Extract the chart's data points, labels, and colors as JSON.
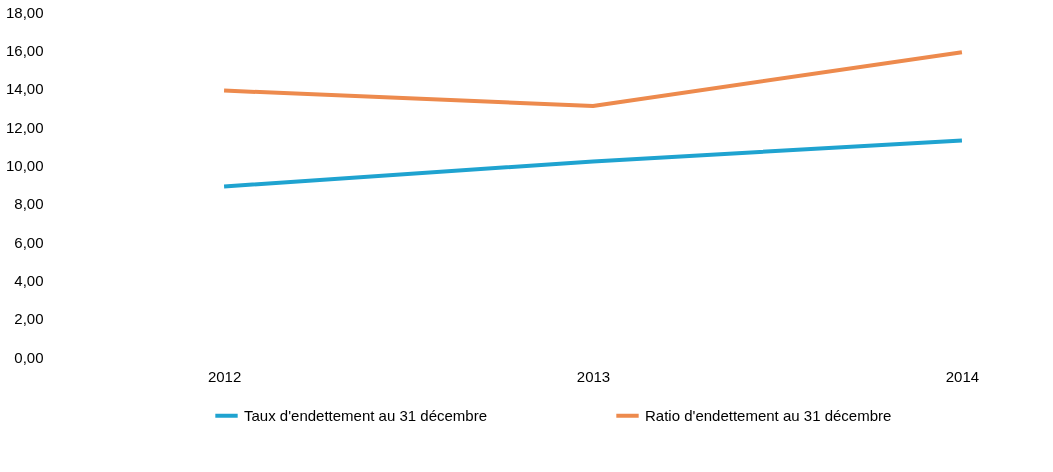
{
  "chart_data": {
    "type": "line",
    "categories": [
      "2012",
      "2013",
      "2014"
    ],
    "series": [
      {
        "name": "Taux d'endettement au 31 décembre",
        "color": "#1fa3d0",
        "values": [
          8.9,
          10.2,
          11.3
        ]
      },
      {
        "name": "Ratio d'endettement au 31 décembre",
        "color": "#ed8a4d",
        "values": [
          13.9,
          13.1,
          15.9
        ]
      }
    ],
    "ylim": [
      0,
      18
    ],
    "yticks": [
      {
        "value": 0,
        "label": "0,00"
      },
      {
        "value": 2,
        "label": "2,00"
      },
      {
        "value": 4,
        "label": "4,00"
      },
      {
        "value": 6,
        "label": "6,00"
      },
      {
        "value": 8,
        "label": "8,00"
      },
      {
        "value": 10,
        "label": "10,00"
      },
      {
        "value": 12,
        "label": "12,00"
      },
      {
        "value": 14,
        "label": "14,00"
      },
      {
        "value": 16,
        "label": "16,00"
      },
      {
        "value": 18,
        "label": "18,00"
      }
    ],
    "grid": false,
    "legend": "bottom",
    "marker": "none",
    "line_style": "solid"
  }
}
